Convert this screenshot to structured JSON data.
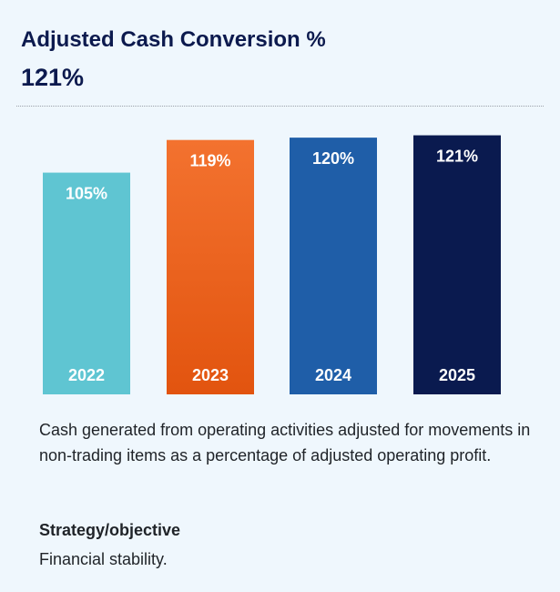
{
  "header": {
    "title": "Adjusted Cash Conversion %",
    "headline_value": "121%"
  },
  "chart_data": {
    "type": "bar",
    "categories": [
      "2022",
      "2023",
      "2024",
      "2025"
    ],
    "values": [
      105,
      119,
      120,
      121
    ],
    "value_labels": [
      "105%",
      "119%",
      "120%",
      "121%"
    ],
    "colors": [
      "#5fc5d2",
      "#ef6528",
      "#1f5ea8",
      "#0a1a4f"
    ],
    "ylim": [
      10,
      125
    ],
    "grid": false,
    "title": "",
    "xlabel": "",
    "ylabel": ""
  },
  "description": "Cash generated from operating activities adjusted for movements in non-trading items as a percentage of adjusted operating profit.",
  "strategy": {
    "heading": "Strategy/objective",
    "value": "Financial stability."
  }
}
